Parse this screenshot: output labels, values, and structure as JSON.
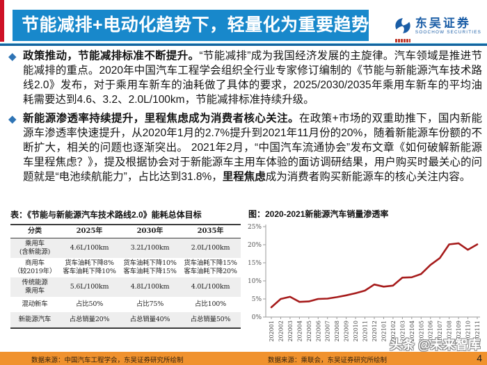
{
  "header": {
    "title": "节能减排+电动化趋势下，轻量化为重要趋势",
    "logo_cn": "东吴证券",
    "logo_en": "SOOCHOW SECURITIES"
  },
  "paragraphs": {
    "p1_bullet": "◆",
    "p1_bold": "政策推动，节能减排标准不断提升。",
    "p1_text": "“节能减排”成为我国经济发展的主旋律。汽车领域是推进节能减排的重点。2020年中国汽车工程学会组织全行业专家修订编制的《节能与新能源汽车技术路线2.0》发布，对于乘用车新车的油耗做了具体的要求，2025/2030/2035年乘用车新车的平均油耗需要达到4.6、3.2、2.0L/100km，节能减排标准持续升级。",
    "p2_bullet": "◆",
    "p2_bold": "新能源渗透率持续提升，里程焦虑成为消费者核心关注。",
    "p2_text1": "在政策+市场的双重助推下，国内新能源车渗透率快速提升，从2020年1月的2.7%提升到2021年11月份的20%，随着新能源车份额的不断扩大，相关的问题也逐渐突出。 2021年2月，“中国汽车流通协会”发布文章《如何破解新能源车里程焦虑？》，提及根据协会对于新能源车主用车体验的面访调研结果，用户购买时最关心的问题就是“电池续航能力”，占比达到31.8%，",
    "p2_bold2": "里程焦虑",
    "p2_text2": "成为消费者购买新能源车的核心关注内容。"
  },
  "table": {
    "title": "表：《节能与新能源汽车技术路线2.0》能耗总体目标",
    "headers": [
      "分类",
      "2025年",
      "2030年",
      "2035年"
    ],
    "rows": [
      [
        "乘用车\n(含新能源)",
        "4.6L/100km",
        "3.2L/100km",
        "2.0L/100km"
      ],
      [
        "商用车\n（较2019年）",
        "货车油耗下降8%\n客车油耗下降10%",
        "货车油耗下降10%\n客车油耗下降15%",
        "货车油耗下降15%\n客车油耗下降20%"
      ],
      [
        "传统能源\n乘用车",
        "5.6L/100km",
        "4.8L/100km",
        "4.0L/100km"
      ],
      [
        "混动新车",
        "占比50%",
        "占比75%",
        "占比100%"
      ],
      [
        "新能源汽车",
        "占总销量20%",
        "占总销量40%",
        "占总销量50%"
      ]
    ]
  },
  "chart_data": {
    "type": "line",
    "title": "图：2020-2021新能源汽车销量渗透率",
    "categories": [
      "202001",
      "202002",
      "202003",
      "202004",
      "202005",
      "202006",
      "202007",
      "202008",
      "202009",
      "202010",
      "202011",
      "202012",
      "202101",
      "202102",
      "202103",
      "202104",
      "202105",
      "202106",
      "202107",
      "202108",
      "202109",
      "202110",
      "202111"
    ],
    "series": [
      {
        "name": "新能源汽车销量渗透率",
        "values": [
          2.7,
          5.0,
          5.6,
          4.2,
          4.3,
          5.0,
          5.1,
          5.5,
          6.0,
          6.6,
          7.3,
          9.0,
          8.4,
          8.7,
          10.9,
          11.0,
          11.9,
          14.4,
          16.3,
          20.1,
          20.4,
          18.6,
          20.1
        ]
      }
    ],
    "xlabel": "",
    "ylabel": "",
    "ylim": [
      0,
      25
    ],
    "yticks": [
      "0%",
      "5%",
      "10%",
      "15%",
      "20%",
      "25%"
    ],
    "grid": false,
    "legend": "none",
    "line_color": "#a61b1b"
  },
  "watermark": "头条 @未来智库",
  "footer": {
    "left": "数据来源：中国汽车工程学会，东吴证券研究所绘制",
    "right": "数据来源：乘联会，东吴证券研究所绘制",
    "page": "4"
  },
  "colors": {
    "banner_blue": "#1888cb",
    "header_rule_blue": "#1565a0",
    "bullet_blue": "#2e74b5",
    "chart_line_red": "#a61b1b",
    "footer_orange": "#f0922e",
    "logo_blue": "#1a5da6",
    "left_sliver_red": "#ce1126"
  }
}
